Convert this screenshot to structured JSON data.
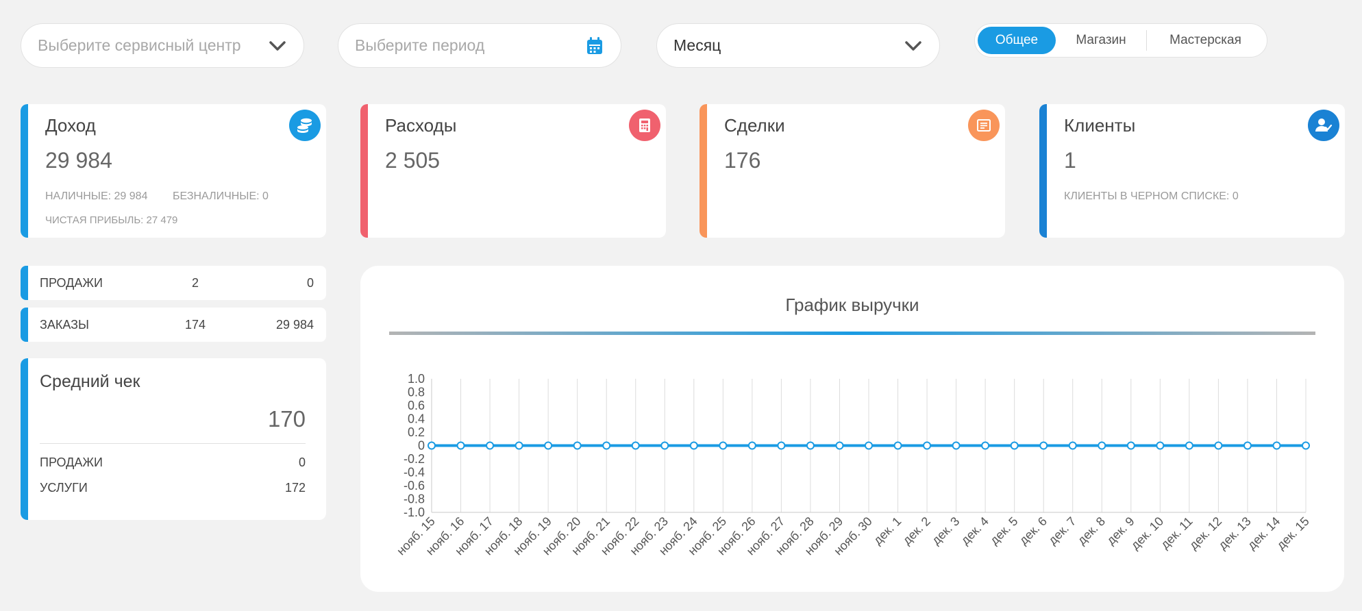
{
  "filters": {
    "service_center": {
      "placeholder": "Выберите сервисный центр",
      "icon": "chevron-down-icon"
    },
    "period": {
      "placeholder": "Выберите период",
      "icon": "calendar-icon"
    },
    "granularity": {
      "value": "Месяц",
      "icon": "chevron-down-icon"
    }
  },
  "segments": [
    "Общее",
    "Магазин",
    "Мастерская"
  ],
  "segment_active": "Общее",
  "cards": {
    "income": {
      "title": "Доход",
      "value": "29 984",
      "color": "#1a9be3",
      "icon": "coins-icon",
      "cash": "НАЛИЧНЫЕ: 29 984",
      "cashless": "БЕЗНАЛИЧНЫЕ: 0",
      "net": "ЧИСТАЯ ПРИБЫЛЬ: 27 479"
    },
    "expenses": {
      "title": "Расходы",
      "value": "2 505",
      "color": "#f0616e",
      "icon": "calculator-icon"
    },
    "deals": {
      "title": "Сделки",
      "value": "176",
      "color": "#f9955a",
      "icon": "receipt-icon"
    },
    "clients": {
      "title": "Клиенты",
      "value": "1",
      "color": "#1a82d4",
      "icon": "user-check-icon",
      "blacklist": "КЛИЕНТЫ В ЧЕРНОМ СПИСКЕ: 0"
    }
  },
  "sales_row": {
    "label": "ПРОДАЖИ",
    "count": "2",
    "amount": "0"
  },
  "orders_row": {
    "label": "ЗАКАЗЫ",
    "count": "174",
    "amount": "29 984"
  },
  "avg_check": {
    "title": "Средний чек",
    "value": "170",
    "sales_label": "ПРОДАЖИ",
    "sales_value": "0",
    "services_label": "УСЛУГИ",
    "services_value": "172"
  },
  "chart_data": {
    "type": "line",
    "title": "График выручки",
    "x": [
      "нояб. 15",
      "нояб. 16",
      "нояб. 17",
      "нояб. 18",
      "нояб. 19",
      "нояб. 20",
      "нояб. 21",
      "нояб. 22",
      "нояб. 23",
      "нояб. 24",
      "нояб. 25",
      "нояб. 26",
      "нояб. 27",
      "нояб. 28",
      "нояб. 29",
      "нояб. 30",
      "дек. 1",
      "дек. 2",
      "дек. 3",
      "дек. 4",
      "дек. 5",
      "дек. 6",
      "дек. 7",
      "дек. 8",
      "дек. 9",
      "дек. 10",
      "дек. 11",
      "дек. 12",
      "дек. 13",
      "дек. 14",
      "дек. 15"
    ],
    "series": [
      {
        "values": [
          0,
          0,
          0,
          0,
          0,
          0,
          0,
          0,
          0,
          0,
          0,
          0,
          0,
          0,
          0,
          0,
          0,
          0,
          0,
          0,
          0,
          0,
          0,
          0,
          0,
          0,
          0,
          0,
          0,
          0,
          0
        ],
        "color": "#1a9be3"
      }
    ],
    "ylim": [
      -1.0,
      1.0
    ],
    "yticks": [
      "1.0",
      "0.8",
      "0.6",
      "0.4",
      "0.2",
      "0",
      "-0.2",
      "-0.4",
      "-0.6",
      "-0.8",
      "-1.0"
    ],
    "grid": "vertical",
    "legend": "none"
  }
}
